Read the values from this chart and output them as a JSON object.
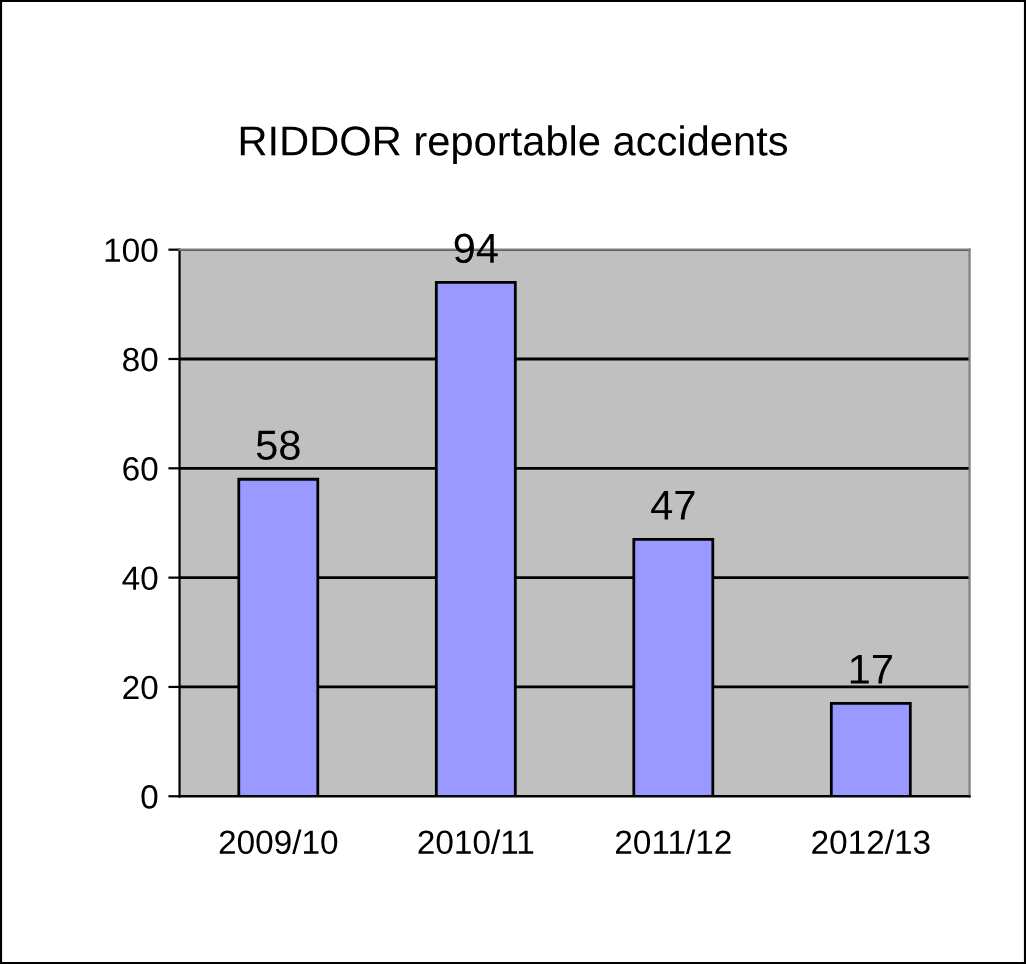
{
  "chart_data": {
    "type": "bar",
    "title": "RIDDOR reportable accidents",
    "categories": [
      "2009/10",
      "2010/11",
      "2011/12",
      "2012/13"
    ],
    "values": [
      58,
      94,
      47,
      17
    ],
    "color": "#9999ff",
    "ylim": [
      0,
      100
    ],
    "yticks": [
      0,
      20,
      40,
      60,
      80,
      100
    ],
    "grid": "y",
    "data_labels": true
  }
}
